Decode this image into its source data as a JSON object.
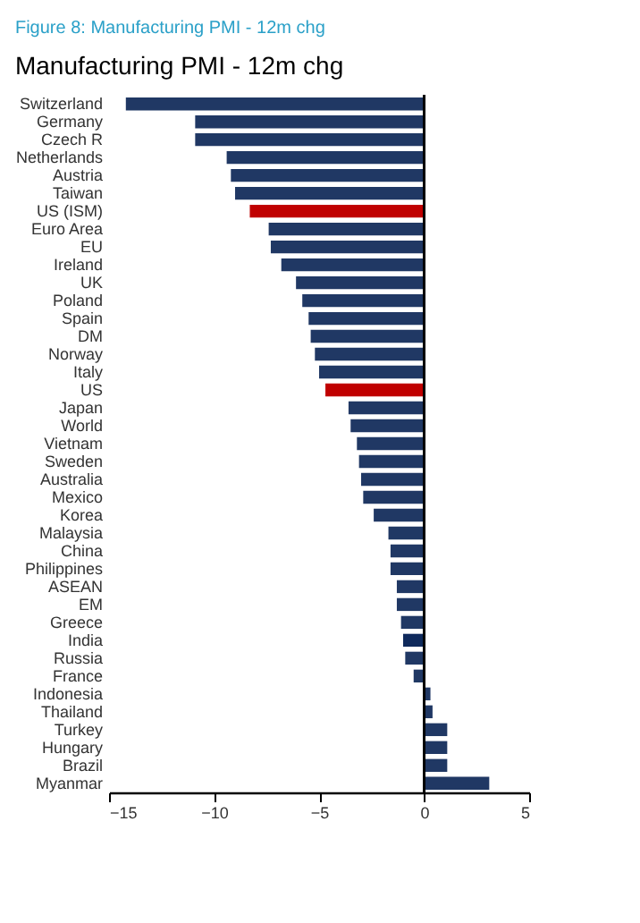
{
  "chart_data": {
    "type": "bar",
    "orientation": "horizontal",
    "title": "Figure 8: Manufacturing PMI - 12m chg",
    "subtitle": "Manufacturing PMI - 12m chg",
    "categories": [
      "Switzerland",
      "Germany",
      "Czech R",
      "Netherlands",
      "Austria",
      "Taiwan",
      "US (ISM)",
      "Euro Area",
      "EU",
      "Ireland",
      "UK",
      "Poland",
      "Spain",
      "DM",
      "Norway",
      "Italy",
      "US",
      "Japan",
      "World",
      "Vietnam",
      "Sweden",
      "Australia",
      "Mexico",
      "Korea",
      "Malaysia",
      "China",
      "Philippines",
      "ASEAN",
      "EM",
      "Greece",
      "India",
      "Russia",
      "France",
      "Indonesia",
      "Thailand",
      "Turkey",
      "Hungary",
      "Brazil",
      "Myanmar"
    ],
    "values": [
      -14.2,
      -10.9,
      -10.9,
      -9.4,
      -9.2,
      -9.0,
      -8.3,
      -7.4,
      -7.3,
      -6.8,
      -6.1,
      -5.8,
      -5.5,
      -5.4,
      -5.2,
      -5.0,
      -4.7,
      -3.6,
      -3.5,
      -3.2,
      -3.1,
      -3.0,
      -2.9,
      -2.4,
      -1.7,
      -1.6,
      -1.6,
      -1.3,
      -1.3,
      -1.1,
      -1.0,
      -0.9,
      -0.5,
      0.3,
      0.4,
      1.1,
      1.1,
      1.1,
      3.1
    ],
    "colors": [
      "#203864",
      "#203864",
      "#203864",
      "#203864",
      "#203864",
      "#203864",
      "#c00000",
      "#203864",
      "#203864",
      "#203864",
      "#203864",
      "#203864",
      "#203864",
      "#203864",
      "#203864",
      "#203864",
      "#c00000",
      "#203864",
      "#203864",
      "#203864",
      "#203864",
      "#203864",
      "#203864",
      "#203864",
      "#203864",
      "#203864",
      "#203864",
      "#203864",
      "#203864",
      "#203864",
      "#0f2a5c",
      "#203864",
      "#203864",
      "#203864",
      "#203864",
      "#203864",
      "#203864",
      "#203864",
      "#203864"
    ],
    "xlim": [
      -15,
      5
    ],
    "xticks": [
      -15,
      -10,
      -5,
      0,
      5
    ],
    "grid": false,
    "ref_lines": [
      {
        "axis": "x",
        "value": 0,
        "color": "#000000"
      }
    ]
  }
}
